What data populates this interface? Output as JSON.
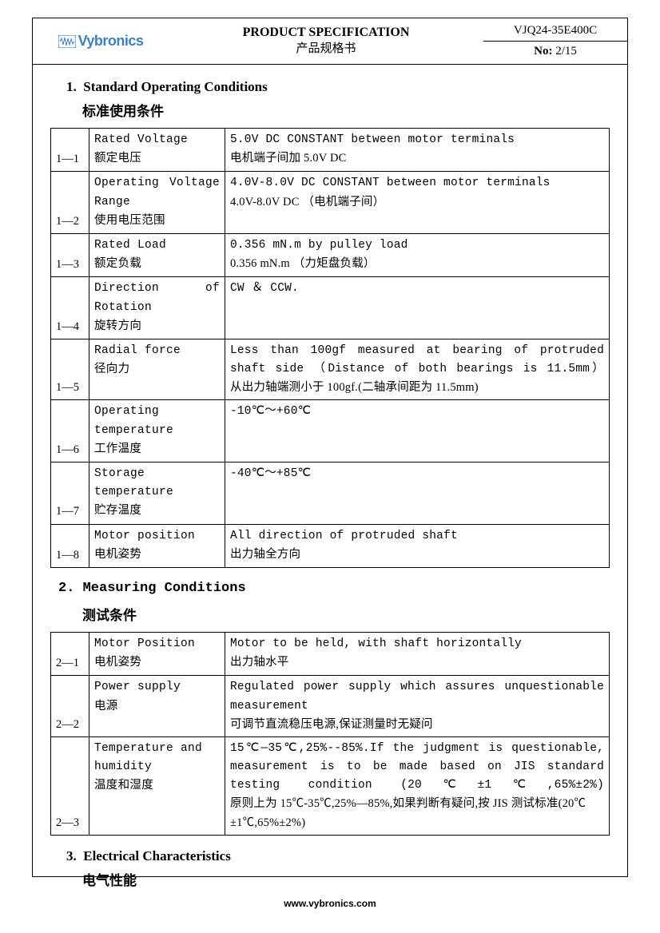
{
  "header": {
    "logo_text": "Vybronics",
    "logo_color": "#3a7fc4",
    "title_en": "PRODUCT SPECIFICATION",
    "title_cn": "产品规格书",
    "part_no": "VJQ24-35E400C",
    "page_label": "No:",
    "page_value": "2/15"
  },
  "section1": {
    "num": "1.",
    "title_en": "Standard Operating Conditions",
    "title_cn": "标准使用条件",
    "rows": [
      {
        "idx": "1—1",
        "name_en": "Rated Voltage",
        "name_cn": "额定电压",
        "val_en": "5.0V DC CONSTANT between motor terminals",
        "val_cn": "电机端子间加 5.0V DC"
      },
      {
        "idx": "1—2",
        "name_en": "Operating Voltage Range",
        "name_en_just": true,
        "name_cn": "使用电压范围",
        "val_en": "4.0V-8.0V DC CONSTANT between motor terminals",
        "val_cn": "4.0V-8.0V DC （电机端子间）"
      },
      {
        "idx": "1—3",
        "name_en": "Rated Load",
        "name_cn": "额定负载",
        "val_en": "0.356 mN.m by pulley load",
        "val_cn": " 0.356 mN.m （力矩盘负载）"
      },
      {
        "idx": "1—4",
        "name_en": "Direction of Rotation",
        "name_en_just": true,
        "name_cn": "旋转方向",
        "val_en": "CW ＆ CCW.",
        "val_cn": ""
      },
      {
        "idx": "1—5",
        "name_en": "Radial force",
        "name_cn": "径向力",
        "val_en": " Less than 100gf measured at bearing of protruded shaft side （Distance of both bearings is 11.5mm）",
        "val_en_just": true,
        "val_cn": " 从出力轴端测小于 100gf.(二轴承间距为 11.5mm)"
      },
      {
        "idx": "1—6",
        "name_en": "Operating temperature",
        "name_cn": "工作温度",
        "val_en": "-10℃～+60℃",
        "val_cn": ""
      },
      {
        "idx": "1—7",
        "name_en": "Storage temperature",
        "name_cn": "贮存温度",
        "val_en": "-40℃～+85℃",
        "val_cn": ""
      },
      {
        "idx": "1—8",
        "name_en": "Motor position",
        "name_cn": "电机姿势",
        "val_en": "All direction of protruded shaft",
        "val_cn": "出力轴全方向"
      }
    ]
  },
  "section2": {
    "num": "2.",
    "title_en": "Measuring Conditions",
    "title_cn": "测试条件",
    "rows": [
      {
        "idx": "2—1",
        "name_en": "Motor Position",
        "name_cn": "电机姿势",
        "val_en": "Motor to be held, with shaft horizontally",
        "val_cn": "出力轴水平"
      },
      {
        "idx": "2—2",
        "name_en": "Power supply",
        "name_cn": "电源",
        "val_en": "Regulated power supply which assures unquestionable measurement",
        "val_en_just": true,
        "val_cn": "可调节直流稳压电源,保证测量时无疑问"
      },
      {
        "idx": "2—3",
        "name_en": "Temperature and humidity",
        "name_cn": "温度和湿度",
        "val_en": "15℃—35℃,25%--85%.If the judgment is questionable, measurement is to be made based on JIS standard testing condition (20℃±1℃,65%±2%)",
        "val_en_just": true,
        "val_cn": "原则上为 15℃-35℃,25%—85%,如果判断有疑问,按 JIS 测试标准(20℃±1℃,65%±2%)"
      }
    ]
  },
  "section3": {
    "num": "3.",
    "title_en": "Electrical Characteristics",
    "title_cn": "电气性能"
  },
  "footer": "www.vybronics.com",
  "colors": {
    "text": "#000000",
    "border": "#000000",
    "background": "#ffffff"
  }
}
